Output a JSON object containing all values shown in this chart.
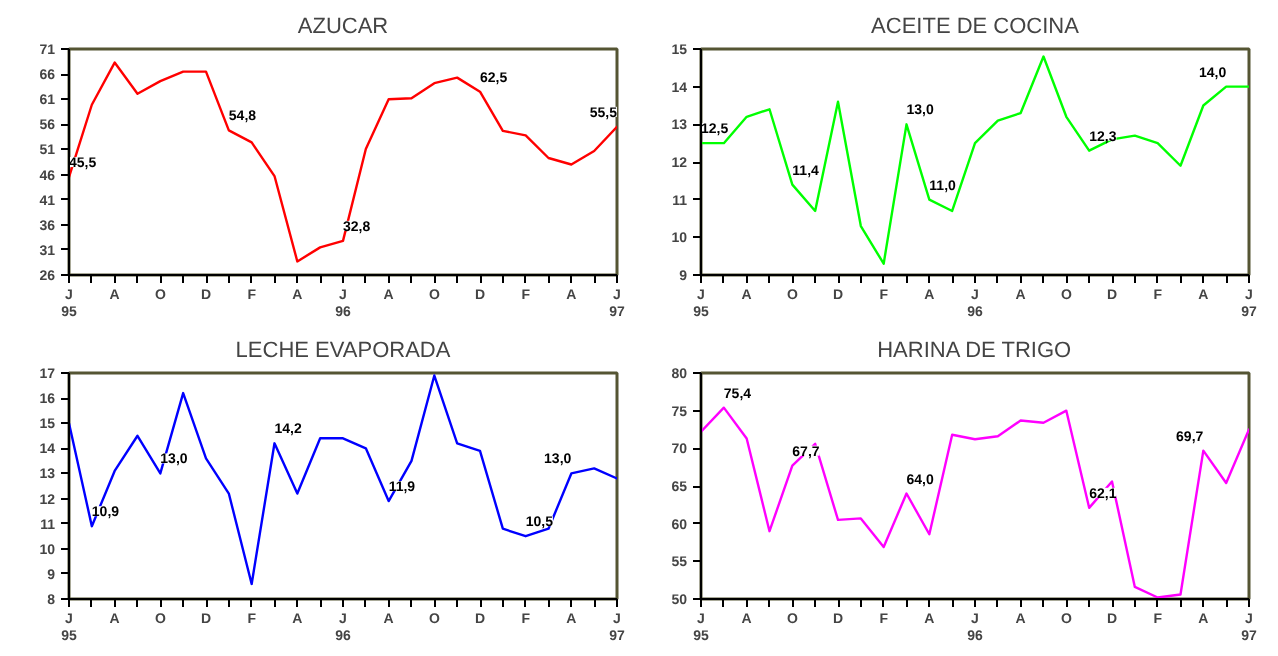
{
  "chart_data": [
    {
      "type": "line",
      "title": "AZUCAR",
      "x": [
        "1995-06",
        "1995-07",
        "1995-08",
        "1995-09",
        "1995-10",
        "1995-11",
        "1995-12",
        "1996-01",
        "1996-02",
        "1996-03",
        "1996-04",
        "1996-05",
        "1996-06",
        "1996-07",
        "1996-08",
        "1996-09",
        "1996-10",
        "1996-11",
        "1996-12",
        "1997-01",
        "1997-02",
        "1997-03",
        "1997-04",
        "1997-05",
        "1997-06"
      ],
      "series": [
        {
          "color": "#ff0000",
          "values": [
            45.5,
            59.9,
            68.3,
            62.1,
            64.6,
            66.5,
            66.5,
            54.8,
            52.4,
            45.7,
            28.7,
            31.5,
            32.8,
            51.1,
            61.0,
            61.2,
            64.2,
            65.3,
            62.5,
            54.7,
            53.8,
            49.3,
            48.0,
            50.7,
            55.5
          ],
          "value_labels": [
            "45,5",
            null,
            null,
            null,
            null,
            null,
            null,
            "54,8",
            null,
            null,
            null,
            null,
            "32,8",
            null,
            null,
            null,
            null,
            null,
            "62,5",
            null,
            null,
            null,
            null,
            null,
            "55,5"
          ]
        }
      ],
      "ylim": [
        26,
        71
      ],
      "yticks": [
        26,
        31,
        36,
        41,
        46,
        51,
        56,
        61,
        66,
        71
      ],
      "xlim": [
        "1995-06",
        "1997-06"
      ],
      "xticks": [
        {
          "value": "1995-06",
          "label": "J\n95"
        },
        {
          "value": "1995-07",
          "label": null
        },
        {
          "value": "1995-08",
          "label": "A"
        },
        {
          "value": "1995-09",
          "label": null
        },
        {
          "value": "1995-10",
          "label": "O"
        },
        {
          "value": "1995-11",
          "label": null
        },
        {
          "value": "1995-12",
          "label": "D"
        },
        {
          "value": "1996-01",
          "label": null
        },
        {
          "value": "1996-02",
          "label": "F"
        },
        {
          "value": "1996-03",
          "label": null
        },
        {
          "value": "1996-04",
          "label": "A"
        },
        {
          "value": "1996-05",
          "label": null
        },
        {
          "value": "1996-06",
          "label": "J\n96"
        },
        {
          "value": "1996-07",
          "label": null
        },
        {
          "value": "1996-08",
          "label": "A"
        },
        {
          "value": "1996-09",
          "label": null
        },
        {
          "value": "1996-10",
          "label": "O"
        },
        {
          "value": "1996-11",
          "label": null
        },
        {
          "value": "1996-12",
          "label": "D"
        },
        {
          "value": "1997-01",
          "label": null
        },
        {
          "value": "1997-02",
          "label": "F"
        },
        {
          "value": "1997-03",
          "label": null
        },
        {
          "value": "1997-04",
          "label": "A"
        },
        {
          "value": "1997-05",
          "label": null
        },
        {
          "value": "1997-06",
          "label": "J\n97"
        }
      ]
    },
    {
      "type": "line",
      "title": "ACEITE DE COCINA",
      "x": [
        "1995-06",
        "1995-07",
        "1995-08",
        "1995-09",
        "1995-10",
        "1995-11",
        "1995-12",
        "1996-01",
        "1996-02",
        "1996-03",
        "1996-04",
        "1996-05",
        "1996-06",
        "1996-07",
        "1996-08",
        "1996-09",
        "1996-10",
        "1996-11",
        "1996-12",
        "1997-01",
        "1997-02",
        "1997-03",
        "1997-04",
        "1997-05",
        "1997-06"
      ],
      "series": [
        {
          "color": "#00ff00",
          "values": [
            12.5,
            12.5,
            13.2,
            13.4,
            11.4,
            10.7,
            13.6,
            10.3,
            9.3,
            13.0,
            11.0,
            10.7,
            12.5,
            13.1,
            13.3,
            14.8,
            13.2,
            12.3,
            12.6,
            12.7,
            12.5,
            11.9,
            13.5,
            14.0,
            14.0
          ],
          "value_labels": [
            "12,5",
            null,
            null,
            null,
            "11,4",
            null,
            null,
            null,
            null,
            "13,0",
            "11,0",
            null,
            null,
            null,
            null,
            null,
            null,
            "12,3",
            null,
            null,
            null,
            null,
            null,
            "14,0",
            null
          ]
        }
      ],
      "ylim": [
        9,
        15
      ],
      "yticks": [
        9,
        10,
        11,
        12,
        13,
        14,
        15
      ],
      "xlim": [
        "1995-06",
        "1997-06"
      ],
      "xticks": [
        {
          "value": "1995-06",
          "label": "J\n95"
        },
        {
          "value": "1995-07",
          "label": null
        },
        {
          "value": "1995-08",
          "label": "A"
        },
        {
          "value": "1995-09",
          "label": null
        },
        {
          "value": "1995-10",
          "label": "O"
        },
        {
          "value": "1995-11",
          "label": null
        },
        {
          "value": "1995-12",
          "label": "D"
        },
        {
          "value": "1996-01",
          "label": null
        },
        {
          "value": "1996-02",
          "label": "F"
        },
        {
          "value": "1996-03",
          "label": null
        },
        {
          "value": "1996-04",
          "label": "A"
        },
        {
          "value": "1996-05",
          "label": null
        },
        {
          "value": "1996-06",
          "label": "J\n96"
        },
        {
          "value": "1996-07",
          "label": null
        },
        {
          "value": "1996-08",
          "label": "A"
        },
        {
          "value": "1996-09",
          "label": null
        },
        {
          "value": "1996-10",
          "label": "O"
        },
        {
          "value": "1996-11",
          "label": null
        },
        {
          "value": "1996-12",
          "label": "D"
        },
        {
          "value": "1997-01",
          "label": null
        },
        {
          "value": "1997-02",
          "label": "F"
        },
        {
          "value": "1997-03",
          "label": null
        },
        {
          "value": "1997-04",
          "label": "A"
        },
        {
          "value": "1997-05",
          "label": null
        },
        {
          "value": "1997-06",
          "label": "J\n97"
        }
      ]
    },
    {
      "type": "line",
      "title": "LECHE EVAPORADA",
      "x": [
        "1995-06",
        "1995-07",
        "1995-08",
        "1995-09",
        "1995-10",
        "1995-11",
        "1995-12",
        "1996-01",
        "1996-02",
        "1996-03",
        "1996-04",
        "1996-05",
        "1996-06",
        "1996-07",
        "1996-08",
        "1996-09",
        "1996-10",
        "1996-11",
        "1996-12",
        "1997-01",
        "1997-02",
        "1997-03",
        "1997-04",
        "1997-05",
        "1997-06"
      ],
      "series": [
        {
          "color": "#0000ff",
          "values": [
            15.0,
            10.9,
            13.1,
            14.5,
            13.0,
            16.2,
            13.6,
            12.2,
            8.6,
            14.2,
            12.2,
            14.4,
            14.4,
            14.0,
            11.9,
            13.5,
            16.9,
            14.2,
            13.9,
            10.8,
            10.5,
            10.8,
            13.0,
            13.2,
            12.8
          ],
          "value_labels": [
            null,
            "10,9",
            null,
            null,
            "13,0",
            null,
            null,
            null,
            null,
            "14,2",
            null,
            null,
            null,
            null,
            "11,9",
            null,
            null,
            null,
            null,
            null,
            "10,5",
            null,
            "13,0",
            null,
            null
          ]
        }
      ],
      "ylim": [
        8,
        17
      ],
      "yticks": [
        8,
        9,
        10,
        11,
        12,
        13,
        14,
        15,
        16,
        17
      ],
      "xlim": [
        "1995-06",
        "1997-06"
      ],
      "xticks": [
        {
          "value": "1995-06",
          "label": "J\n95"
        },
        {
          "value": "1995-07",
          "label": null
        },
        {
          "value": "1995-08",
          "label": "A"
        },
        {
          "value": "1995-09",
          "label": null
        },
        {
          "value": "1995-10",
          "label": "O"
        },
        {
          "value": "1995-11",
          "label": null
        },
        {
          "value": "1995-12",
          "label": "D"
        },
        {
          "value": "1996-01",
          "label": null
        },
        {
          "value": "1996-02",
          "label": "F"
        },
        {
          "value": "1996-03",
          "label": null
        },
        {
          "value": "1996-04",
          "label": "A"
        },
        {
          "value": "1996-05",
          "label": null
        },
        {
          "value": "1996-06",
          "label": "J\n96"
        },
        {
          "value": "1996-07",
          "label": null
        },
        {
          "value": "1996-08",
          "label": "A"
        },
        {
          "value": "1996-09",
          "label": null
        },
        {
          "value": "1996-10",
          "label": "O"
        },
        {
          "value": "1996-11",
          "label": null
        },
        {
          "value": "1996-12",
          "label": "D"
        },
        {
          "value": "1997-01",
          "label": null
        },
        {
          "value": "1997-02",
          "label": "F"
        },
        {
          "value": "1997-03",
          "label": null
        },
        {
          "value": "1997-04",
          "label": "A"
        },
        {
          "value": "1997-05",
          "label": null
        },
        {
          "value": "1997-06",
          "label": "J\n97"
        }
      ]
    },
    {
      "type": "line",
      "title": "HARINA DE TRIGO",
      "x": [
        "1995-06",
        "1995-07",
        "1995-08",
        "1995-09",
        "1995-10",
        "1995-11",
        "1995-12",
        "1996-01",
        "1996-02",
        "1996-03",
        "1996-04",
        "1996-05",
        "1996-06",
        "1996-07",
        "1996-08",
        "1996-09",
        "1996-10",
        "1996-11",
        "1996-12",
        "1997-01",
        "1997-02",
        "1997-03",
        "1997-04",
        "1997-05",
        "1997-06"
      ],
      "series": [
        {
          "color": "#ff00ff",
          "values": [
            72.2,
            75.4,
            71.3,
            59.0,
            67.7,
            70.6,
            60.5,
            60.7,
            56.9,
            64.0,
            58.6,
            71.8,
            71.2,
            71.6,
            73.7,
            73.4,
            75.0,
            62.1,
            65.6,
            51.6,
            50.2,
            50.6,
            69.7,
            65.4,
            72.5
          ],
          "value_labels": [
            null,
            "75,4",
            null,
            null,
            "67,7",
            null,
            null,
            null,
            null,
            "64,0",
            null,
            null,
            null,
            null,
            null,
            null,
            null,
            "62,1",
            null,
            null,
            null,
            null,
            "69,7",
            null,
            null
          ]
        }
      ],
      "ylim": [
        50,
        80
      ],
      "yticks": [
        50,
        55,
        60,
        65,
        70,
        75,
        80
      ],
      "xlim": [
        "1995-06",
        "1997-06"
      ],
      "xticks": [
        {
          "value": "1995-06",
          "label": "J\n95"
        },
        {
          "value": "1995-07",
          "label": null
        },
        {
          "value": "1995-08",
          "label": "A"
        },
        {
          "value": "1995-09",
          "label": null
        },
        {
          "value": "1995-10",
          "label": "O"
        },
        {
          "value": "1995-11",
          "label": null
        },
        {
          "value": "1995-12",
          "label": "D"
        },
        {
          "value": "1996-01",
          "label": null
        },
        {
          "value": "1996-02",
          "label": "F"
        },
        {
          "value": "1996-03",
          "label": null
        },
        {
          "value": "1996-04",
          "label": "A"
        },
        {
          "value": "1996-05",
          "label": null
        },
        {
          "value": "1996-06",
          "label": "J\n96"
        },
        {
          "value": "1996-07",
          "label": null
        },
        {
          "value": "1996-08",
          "label": "A"
        },
        {
          "value": "1996-09",
          "label": null
        },
        {
          "value": "1996-10",
          "label": "O"
        },
        {
          "value": "1996-11",
          "label": null
        },
        {
          "value": "1996-12",
          "label": "D"
        },
        {
          "value": "1997-01",
          "label": null
        },
        {
          "value": "1997-02",
          "label": "F"
        },
        {
          "value": "1997-03",
          "label": null
        },
        {
          "value": "1997-04",
          "label": "A"
        },
        {
          "value": "1997-05",
          "label": null
        },
        {
          "value": "1997-06",
          "label": "J\n97"
        }
      ]
    }
  ]
}
